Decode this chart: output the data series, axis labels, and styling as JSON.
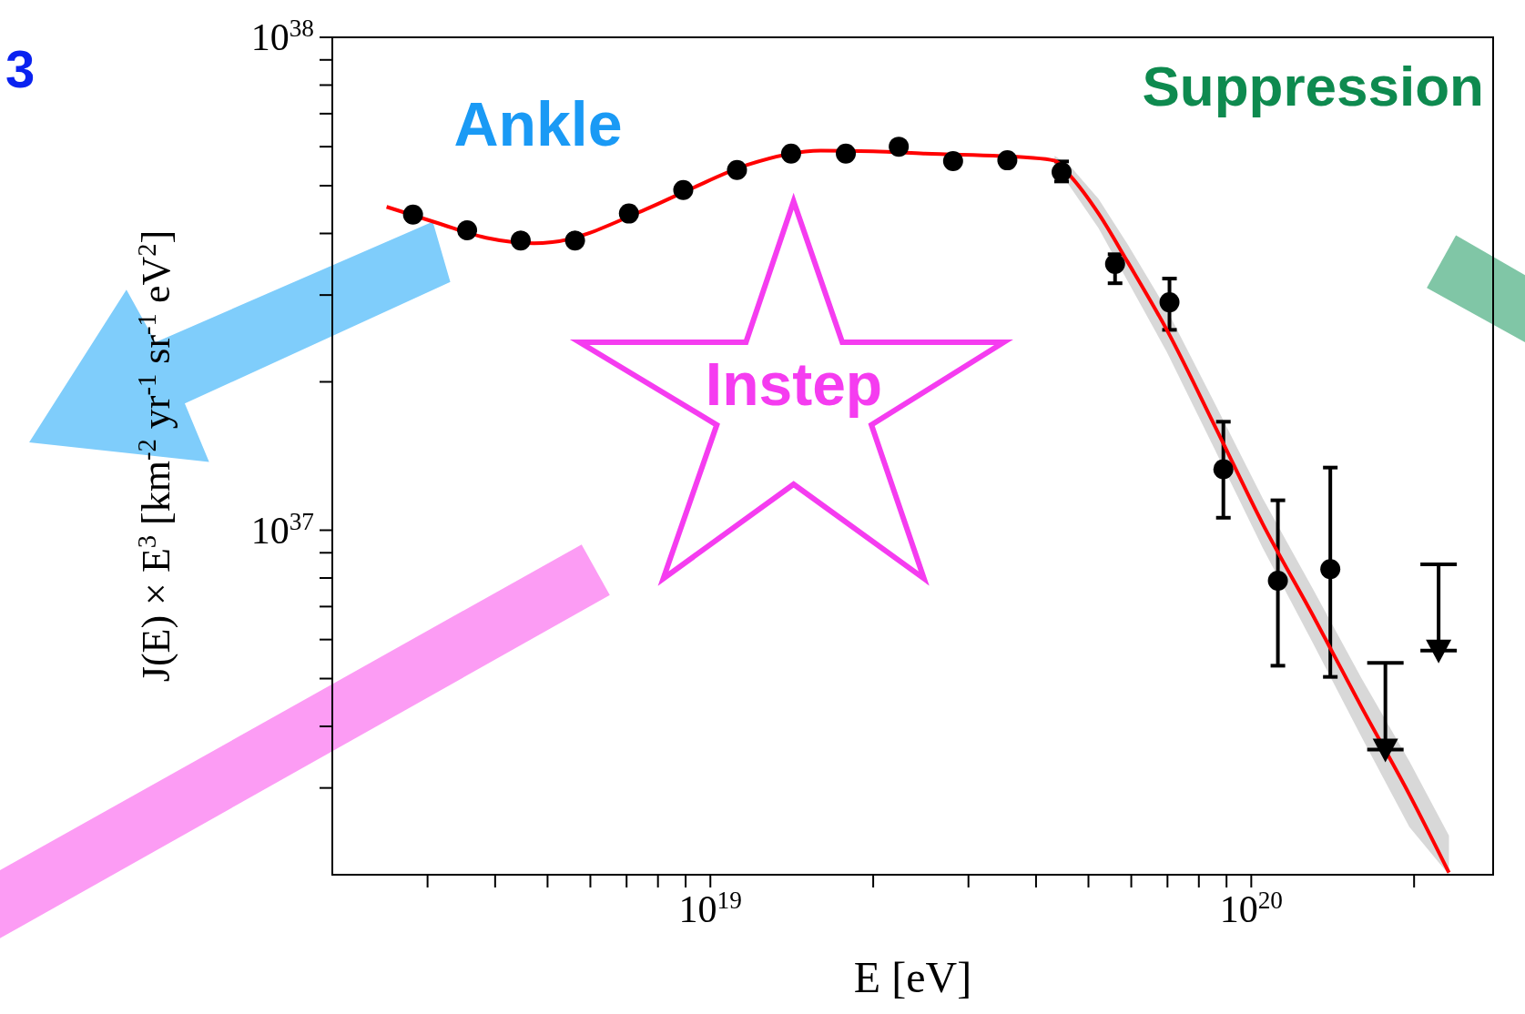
{
  "chart_data": {
    "type": "scatter",
    "xlabel": "E [eV]",
    "ylabel": "J(E) × E$^{3}$ [km$^{-2}$ yr$^{-1}$ sr$^{-1}$ eV$^{2}$]",
    "log": "xy",
    "grid": false,
    "xlim": [
      2e+18,
      2.8e+20
    ],
    "ylim": [
      2e+36,
      1e+38
    ],
    "xticks": [
      {
        "value": 3e+18,
        "label": null
      },
      {
        "value": 4e+18,
        "label": null
      },
      {
        "value": 5e+18,
        "label": null
      },
      {
        "value": 6e+18,
        "label": null
      },
      {
        "value": 7e+18,
        "label": null
      },
      {
        "value": 8e+18,
        "label": null
      },
      {
        "value": 9e+18,
        "label": null
      },
      {
        "value": 1e+19,
        "label": "10$^{19}$"
      },
      {
        "value": 2e+19,
        "label": null
      },
      {
        "value": 3e+19,
        "label": null
      },
      {
        "value": 4e+19,
        "label": null
      },
      {
        "value": 5e+19,
        "label": null
      },
      {
        "value": 6e+19,
        "label": null
      },
      {
        "value": 7e+19,
        "label": null
      },
      {
        "value": 8e+19,
        "label": null
      },
      {
        "value": 9e+19,
        "label": null
      },
      {
        "value": 1e+20,
        "label": "10$^{20}$"
      },
      {
        "value": 2e+20,
        "label": null
      }
    ],
    "yticks": [
      {
        "value": 3e+36,
        "label": null
      },
      {
        "value": 4e+36,
        "label": null
      },
      {
        "value": 5e+36,
        "label": null
      },
      {
        "value": 6e+36,
        "label": null
      },
      {
        "value": 7e+36,
        "label": null
      },
      {
        "value": 8e+36,
        "label": null
      },
      {
        "value": 9e+36,
        "label": null
      },
      {
        "value": 1e+37,
        "label": "10$^{37}$"
      },
      {
        "value": 2e+37,
        "label": null
      },
      {
        "value": 3e+37,
        "label": null
      },
      {
        "value": 4e+37,
        "label": null
      },
      {
        "value": 5e+37,
        "label": null
      },
      {
        "value": 6e+37,
        "label": null
      },
      {
        "value": 7e+37,
        "label": null
      },
      {
        "value": 8e+37,
        "label": null
      },
      {
        "value": 9e+37,
        "label": null
      },
      {
        "value": 1e+38,
        "label": "10$^{38}$"
      }
    ],
    "annotations": [
      "Ankle",
      "Instep",
      "Suppression",
      "3"
    ],
    "series": [
      {
        "type": "line",
        "color": "#ff0000",
        "x": [
          2.52e+18,
          3.13e+18,
          3.85e+18,
          4.72e+18,
          5.1e+18,
          7.6e+18,
          9.17e+18,
          1.17e+19,
          1.6e+19,
          2e+19,
          2.48e+19,
          3.9e+19,
          4.33e+19,
          4.61e+19,
          5.22e+19,
          5.91e+19,
          6.98e+19,
          8.58e+19,
          1.05e+20,
          1.3e+20,
          1.6e+20,
          1.96e+20,
          2.32e+20
        ],
        "values": [
          4.53e+37,
          4.2e+37,
          3.92e+37,
          3.82e+37,
          3.84e+37,
          4.48e+37,
          4.92e+37,
          5.51e+37,
          5.89e+37,
          5.87e+37,
          5.81e+37,
          5.7e+37,
          5.62e+37,
          5.26e+37,
          4.39e+37,
          3.5e+37,
          2.55e+37,
          1.62e+37,
          1.03e+37,
          6.72e+36,
          4.37e+36,
          2.91e+36,
          2.02e+36
        ],
        "lower": [
          null,
          null,
          null,
          null,
          null,
          null,
          null,
          null,
          null,
          null,
          null,
          null,
          5.5e+37,
          5e+37,
          4.1e+37,
          3.2e+37,
          2.3e+37,
          1.45e+37,
          9.2e+36,
          5.9e+36,
          3.8e+36,
          2.5e+36,
          2e+36
        ],
        "upper": [
          null,
          null,
          null,
          null,
          null,
          null,
          null,
          null,
          null,
          null,
          null,
          null,
          5.75e+37,
          5.5e+37,
          4.7e+37,
          3.8e+37,
          2.8e+37,
          1.8e+37,
          1.16e+37,
          7.6e+36,
          5e+36,
          3.4e+36,
          2.4e+36
        ]
      },
      {
        "color": "#000000",
        "marker": "circle",
        "x": [
          2.82e+18,
          3.55e+18,
          4.46e+18,
          5.62e+18,
          7.07e+18,
          8.91e+18,
          1.12e+19,
          1.41e+19,
          1.78e+19,
          2.23e+19,
          2.81e+19,
          3.54e+19,
          4.46e+19,
          5.6e+19,
          7.06e+19,
          8.88e+19,
          1.12e+20,
          1.4e+20
        ],
        "values": [
          4.37e+37,
          4.06e+37,
          3.87e+37,
          3.87e+37,
          4.39e+37,
          4.9e+37,
          5.38e+37,
          5.81e+37,
          5.81e+37,
          6e+37,
          5.61e+37,
          5.63e+37,
          5.33e+37,
          3.47e+37,
          2.9e+37,
          1.33e+37,
          7.9e+36,
          8.34e+36
        ],
        "errors": [
          null,
          null,
          null,
          null,
          null,
          null,
          null,
          null,
          null,
          null,
          null,
          null,
          [
            5.1e+37,
            5.6e+37
          ],
          [
            3.17e+37,
            3.63e+37
          ],
          [
            2.55e+37,
            3.24e+37
          ],
          [
            1.06e+37,
            1.66e+37
          ],
          [
            5.31e+36,
            1.15e+37
          ],
          [
            5.04e+36,
            1.34e+37
          ]
        ]
      },
      {
        "type": "scatter",
        "color": "#000000",
        "marker": "triangle",
        "x": [
          1.77e+20,
          2.22e+20
        ],
        "values": [
          3.59e+36,
          5.7e+36
        ],
        "errors": [
          [
            3.59e+36,
            5.38e+36
          ],
          [
            5.7e+36,
            8.53e+36
          ]
        ]
      }
    ]
  }
}
